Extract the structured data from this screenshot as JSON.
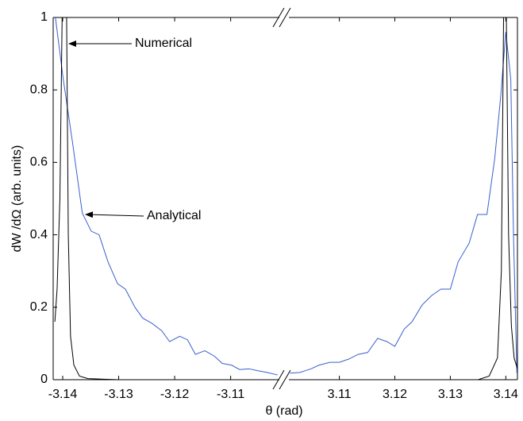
{
  "chart_data": [
    {
      "type": "line",
      "ylabel": "dW /dΩ (arb. units)",
      "xlim": [
        -3.1417,
        -3.1013
      ],
      "xticks": [
        -3.14,
        -3.13,
        -3.12,
        -3.11
      ],
      "ylim": [
        0,
        1
      ],
      "yticks": [
        0,
        0.2,
        0.4,
        0.6,
        0.8,
        1
      ],
      "series": [
        {
          "name": "Numerical",
          "color": "#3a5fcd",
          "x": [
            -3.1413,
            -3.1399,
            -3.1382,
            -3.1365,
            -3.1349,
            -3.1335,
            -3.1319,
            -3.1302,
            -3.1288,
            -3.1271,
            -3.1257,
            -3.124,
            -3.1223,
            -3.1209,
            -3.1191,
            -3.1177,
            -3.1163,
            -3.1146,
            -3.1129,
            -3.1115,
            -3.1098,
            -3.1084,
            -3.1067,
            -3.1052,
            -3.1035,
            -3.1016
          ],
          "values": [
            1.0,
            0.83,
            0.65,
            0.46,
            0.41,
            0.4,
            0.325,
            0.265,
            0.25,
            0.2,
            0.17,
            0.155,
            0.135,
            0.105,
            0.12,
            0.11,
            0.07,
            0.08,
            0.065,
            0.045,
            0.04,
            0.028,
            0.03,
            0.025,
            0.02,
            0.013
          ]
        },
        {
          "name": "Analytical",
          "color": "#000000",
          "x": [
            -3.1414,
            -3.141,
            -3.1405,
            -3.1401,
            -3.1393,
            -3.139,
            -3.1386,
            -3.138,
            -3.137,
            -3.1355,
            -3.13,
            -3.1013
          ],
          "values": [
            0.16,
            0.25,
            0.5,
            1.0,
            1.0,
            0.4,
            0.12,
            0.04,
            0.01,
            0.003,
            0,
            0
          ]
        }
      ]
    },
    {
      "type": "line",
      "xlabel": "θ (rad)",
      "xlim": [
        3.1009,
        3.1421
      ],
      "xticks": [
        3.11,
        3.12,
        3.13,
        3.14
      ],
      "ylim": [
        0,
        1
      ],
      "series": [
        {
          "color": "#3a5fcd",
          "x": [
            3.1011,
            3.1029,
            3.1049,
            3.1063,
            3.1083,
            3.11,
            3.1117,
            3.1134,
            3.1151,
            3.1169,
            3.1186,
            3.12,
            3.1217,
            3.1231,
            3.1249,
            3.1266,
            3.1283,
            3.13,
            3.1314,
            3.1334,
            3.1349,
            3.1366,
            3.138,
            3.1391,
            3.14,
            3.1409,
            3.1414,
            3.142
          ],
          "values": [
            0.018,
            0.02,
            0.03,
            0.04,
            0.048,
            0.048,
            0.057,
            0.07,
            0.075,
            0.114,
            0.105,
            0.092,
            0.14,
            0.16,
            0.206,
            0.232,
            0.25,
            0.25,
            0.325,
            0.377,
            0.456,
            0.456,
            0.61,
            0.785,
            0.96,
            0.83,
            0.39,
            0.018
          ]
        },
        {
          "color": "#000000",
          "x": [
            3.1009,
            3.135,
            3.137,
            3.1385,
            3.1392,
            3.1396,
            3.1401,
            3.1405,
            3.141,
            3.1415,
            3.1421
          ],
          "values": [
            0,
            0,
            0.01,
            0.06,
            0.3,
            1.0,
            1.0,
            0.4,
            0.15,
            0.06,
            0.03
          ]
        }
      ]
    }
  ]
}
